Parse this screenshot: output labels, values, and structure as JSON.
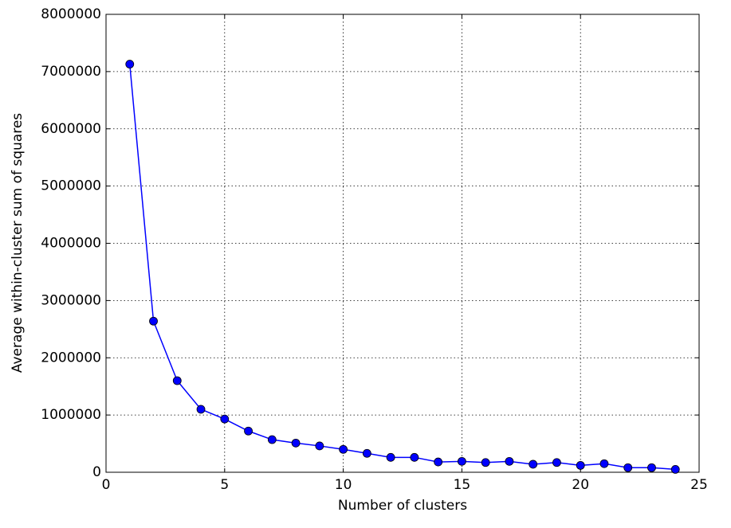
{
  "chart_data": {
    "type": "line",
    "xlabel": "Number of clusters",
    "ylabel": "Average within-cluster sum of squares",
    "x": [
      1,
      2,
      3,
      4,
      5,
      6,
      7,
      8,
      9,
      10,
      11,
      12,
      13,
      14,
      15,
      16,
      17,
      18,
      19,
      20,
      21,
      22,
      23,
      24
    ],
    "series": [
      {
        "color": "#0000ff",
        "values": [
          7130000,
          2640000,
          1600000,
          1100000,
          930000,
          720000,
          570000,
          510000,
          460000,
          400000,
          330000,
          260000,
          260000,
          180000,
          190000,
          170000,
          190000,
          140000,
          170000,
          120000,
          150000,
          80000,
          80000,
          50000
        ]
      }
    ],
    "xlim": [
      0,
      25
    ],
    "xticks": [
      0,
      5,
      10,
      15,
      20,
      25
    ],
    "ylim": [
      0,
      8000000
    ],
    "yticks": [
      0,
      1000000,
      2000000,
      3000000,
      4000000,
      5000000,
      6000000,
      7000000,
      8000000
    ],
    "grid": true
  }
}
